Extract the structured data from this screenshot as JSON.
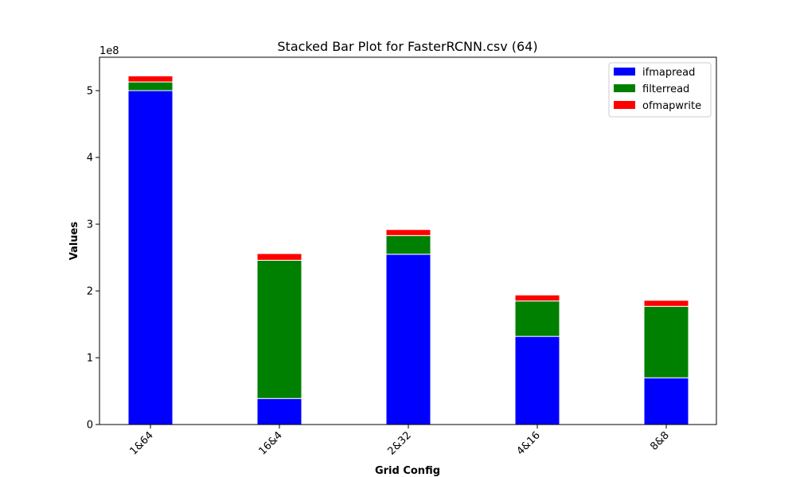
{
  "chart_data": {
    "type": "bar",
    "stacked": true,
    "title": "Stacked Bar Plot for FasterRCNN.csv (64)",
    "xlabel": "Grid Config",
    "ylabel": "Values",
    "y_offset_label": "1e8",
    "categories": [
      "1&64",
      "16&4",
      "2&32",
      "4&16",
      "8&8"
    ],
    "series": [
      {
        "name": "ifmapread",
        "color": "#0000ff",
        "values": [
          500000000,
          39000000,
          255000000,
          132000000,
          70000000
        ]
      },
      {
        "name": "filterread",
        "color": "#008000",
        "values": [
          13000000,
          207000000,
          28000000,
          53000000,
          107000000
        ]
      },
      {
        "name": "ofmapwrite",
        "color": "#ff0000",
        "values": [
          9000000,
          10000000,
          9000000,
          9000000,
          9000000
        ]
      }
    ],
    "ylim": [
      0,
      550000000
    ],
    "yticks": [
      0,
      100000000,
      200000000,
      300000000,
      400000000,
      500000000
    ],
    "ytick_labels": [
      "0",
      "1",
      "2",
      "3",
      "4",
      "5"
    ],
    "legend_position": "top-right",
    "grid": false
  }
}
